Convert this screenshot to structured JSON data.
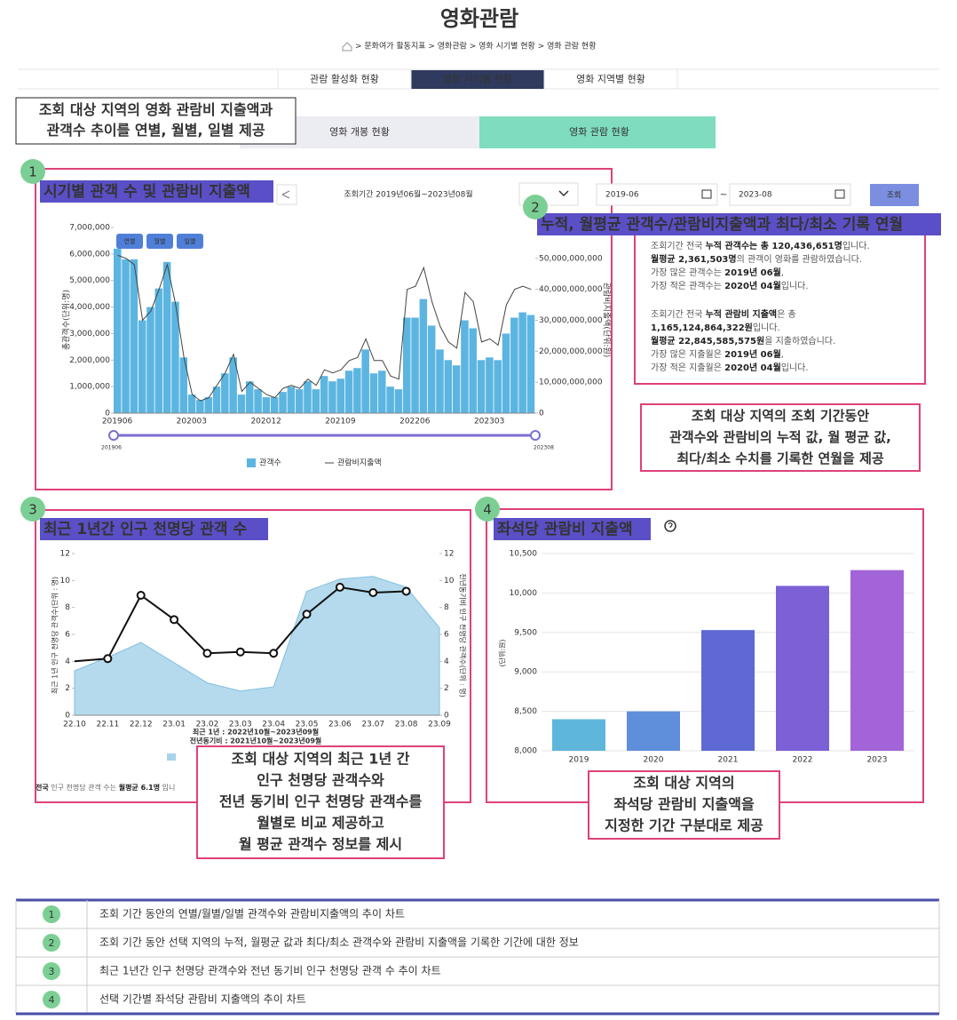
{
  "header": {
    "title": "영화관람",
    "breadcrumb": "> 문화여가 활동지표 > 영화관람 > 영화 시기별 현황 > 영화 관람 현황"
  },
  "tabs": [
    "관람 활성화 현황",
    "영화 시기별 현황",
    "영화 지역별 현황"
  ],
  "subtabs": [
    "영화 개봉 현황",
    "영화 관람 현황"
  ],
  "badges": [
    "1",
    "2",
    "3",
    "4"
  ],
  "controls": {
    "period": "조회기간 2019년06월~2023년08월",
    "date_from": "2019-06",
    "date_to": "2023-08",
    "separator": "~",
    "button": "조회",
    "granularity": [
      "연별",
      "월별",
      "일별"
    ]
  },
  "callouts": [
    {
      "lines": [
        "조회 대상 지역의 영화 관람비 지출액과",
        "관객수 추이를 연별, 월별, 일별 제공"
      ]
    },
    {
      "lines": [
        "조회 대상 지역의 조회 기간동안",
        "관객수와 관람비의 누적 값, 월 평균 값,",
        "최다/최소 수치를 기록한 연월을 제공"
      ]
    },
    {
      "lines": [
        "조회 대상 지역의 최근 1년 간",
        "인구 천명당 관객수와",
        "전년 동기비 인구 천명당 관객수를",
        "월별로 비교 제공하고",
        "월 평균 관객수 정보를 제시"
      ]
    },
    {
      "lines": [
        "조회 대상 지역의",
        "좌석당 관람비 지출액을",
        "지정한 기간 구분대로 제공"
      ]
    }
  ],
  "summary": {
    "title": "누적, 월평균 관객수/관람비지출액과 최다/최소 기록 연월",
    "groups": [
      [
        [
          {
            "text": "조회기간 전국 "
          },
          {
            "text": "누적 관객수는 총 120,436,651명",
            "b": true
          },
          {
            "text": "입니다."
          }
        ],
        [
          {
            "text": "월평균 2,361,503명",
            "b": true
          },
          {
            "text": "의 관객이 영화를 관람하였습니다."
          }
        ],
        [
          {
            "text": "가장 많은 관객수는 "
          },
          {
            "text": "2019년 06월",
            "b": true
          },
          {
            "text": ","
          }
        ],
        [
          {
            "text": "가장 적은 관객수는 "
          },
          {
            "text": "2020년 04월",
            "b": true
          },
          {
            "text": "입니다."
          }
        ]
      ],
      [
        [
          {
            "text": "조회기간 전국 "
          },
          {
            "text": "누적 관람비 지출액",
            "b": true
          },
          {
            "text": "은 총"
          }
        ],
        [
          {
            "text": "1,165,124,864,322원",
            "b": true
          },
          {
            "text": "입니다."
          }
        ],
        [
          {
            "text": "월평균 22,845,585,575원",
            "b": true
          },
          {
            "text": "을 지출하였습니다."
          }
        ],
        [
          {
            "text": "가장 많은 지출월은 "
          },
          {
            "text": "2019년 06월",
            "b": true
          },
          {
            "text": ","
          }
        ],
        [
          {
            "text": "가장 적은 지출월은 "
          },
          {
            "text": "2020년 04월",
            "b": true
          },
          {
            "text": "입니다."
          }
        ]
      ]
    ]
  },
  "chart_data": [
    {
      "type": "combo",
      "title": "시기별 관객 수 및 관람비 지출액",
      "ylabel": "총관객수(단위:명)",
      "y2label": "관람비지출액(단위:원)",
      "categories": [
        "201906",
        null,
        null,
        null,
        null,
        null,
        null,
        null,
        null,
        "202003",
        null,
        null,
        null,
        null,
        null,
        null,
        null,
        null,
        "202012",
        null,
        null,
        null,
        null,
        null,
        null,
        null,
        null,
        "202109",
        null,
        null,
        null,
        null,
        null,
        null,
        null,
        null,
        "202206",
        null,
        null,
        null,
        null,
        null,
        null,
        null,
        null,
        "202303",
        null,
        null,
        null,
        null,
        null
      ],
      "range_labels": [
        "201906",
        "202308"
      ],
      "ylim": [
        0,
        7000000
      ],
      "yticks": [
        0,
        {
          "value": 1000000,
          "label": "1,000,000"
        },
        {
          "value": 2000000,
          "label": "2,000,000"
        },
        {
          "value": 3000000,
          "label": "3,000,000"
        },
        {
          "value": 4000000,
          "label": "4,000,000"
        },
        {
          "value": 5000000,
          "label": "5,000,000"
        },
        {
          "value": 6000000,
          "label": "6,000,000"
        },
        {
          "value": 7000000,
          "label": "7,000,000"
        }
      ],
      "y2lim": [
        0,
        60000000000
      ],
      "y2ticks": [
        0,
        {
          "value": 10000000000,
          "label": "10,000,000,000"
        },
        {
          "value": 20000000000,
          "label": "20,000,000,000"
        },
        {
          "value": 30000000000,
          "label": "30,000,000,000"
        },
        {
          "value": 40000000000,
          "label": "40,000,000,000"
        },
        {
          "value": 50000000000,
          "label": "50,000,000,000"
        }
      ],
      "series": [
        {
          "name": "관객수",
          "type": "bar",
          "color": "#5cb5e0",
          "values": [
            6200000,
            5800000,
            5800000,
            3500000,
            4000000,
            4700000,
            5700000,
            4200000,
            2100000,
            700000,
            500000,
            600000,
            1000000,
            1500000,
            2100000,
            700000,
            1200000,
            900000,
            600000,
            600000,
            800000,
            1000000,
            900000,
            1200000,
            900000,
            1400000,
            1200000,
            1300000,
            1600000,
            1700000,
            2400000,
            1500000,
            1600000,
            1000000,
            900000,
            3600000,
            3600000,
            4300000,
            3300000,
            2400000,
            2000000,
            1800000,
            3500000,
            3200000,
            2000000,
            2100000,
            2000000,
            3000000,
            3600000,
            3800000,
            3700000
          ]
        },
        {
          "name": "관람비지출액",
          "type": "line",
          "axis": "y2",
          "color": "#444444",
          "values": [
            51000000000,
            50000000000,
            48000000000,
            30000000000,
            33000000000,
            40000000000,
            48000000000,
            35000000000,
            18000000000,
            6000000000,
            4000000000,
            5000000000,
            9000000000,
            13000000000,
            19000000000,
            7000000000,
            10000000000,
            8000000000,
            6000000000,
            5000000000,
            8000000000,
            9000000000,
            8000000000,
            11000000000,
            9000000000,
            14000000000,
            13000000000,
            14000000000,
            17000000000,
            18000000000,
            24000000000,
            17000000000,
            17000000000,
            12000000000,
            11000000000,
            40000000000,
            41000000000,
            47000000000,
            36000000000,
            28000000000,
            23000000000,
            21000000000,
            39000000000,
            36000000000,
            23000000000,
            24000000000,
            22000000000,
            35000000000,
            40000000000,
            41000000000,
            40000000000
          ]
        }
      ]
    },
    {
      "type": "combo",
      "title": "최근 1년간 인구 천명당 관객 수",
      "ylabel": "최근 1년 인구 천명당 관객수(단위 : 명)",
      "y2label": "전년동기비 인구 천명당 관객수(단위 : 명)",
      "categories": [
        "22.10",
        "22.11",
        "22.12",
        "23.01",
        "23.02",
        "23.03",
        "23.04",
        "23.05",
        "23.06",
        "23.07",
        "23.08",
        "23.09"
      ],
      "ylim": [
        0,
        12
      ],
      "yticks": [
        0,
        2,
        4,
        6,
        8,
        10,
        12
      ],
      "y2lim": [
        0,
        12
      ],
      "y2ticks": [
        0,
        2,
        4,
        6,
        8,
        10,
        12
      ],
      "series": [
        {
          "name": "전년동기비 : 2021년10월~2023년09월",
          "type": "area",
          "axis": "y2",
          "color": "#a8d3ea",
          "values": [
            3.3,
            4.3,
            5.4,
            3.9,
            2.4,
            1.8,
            2.1,
            9.2,
            10.1,
            10.3,
            9.5,
            6.5
          ]
        },
        {
          "name": "최근 1년 : 2022년10월~2023년09월",
          "type": "line",
          "color": "#111111",
          "values": [
            4.0,
            4.2,
            8.9,
            7.1,
            4.6,
            4.7,
            4.6,
            7.5,
            9.5,
            9.1,
            9.2,
            null
          ]
        }
      ],
      "note": [
        {
          "text": "전국",
          "b": true
        },
        {
          "text": " 인구 천명당 관객 수는 "
        },
        {
          "text": "월평균 6.1명",
          "b": true
        },
        {
          "text": " 입니"
        }
      ]
    },
    {
      "type": "bar",
      "title": "좌석당 관람비 지출액",
      "ylabel": "(단위:원)",
      "grid": true,
      "categories": [
        "2019",
        "2020",
        "2021",
        "2022",
        "2023"
      ],
      "values": [
        8400,
        8500,
        9530,
        10090,
        10290
      ],
      "colors": [
        "#5fb6dc",
        "#5f8edb",
        "#5f69d5",
        "#7c60d6",
        "#a264d8"
      ],
      "ylim": [
        8000,
        10500
      ],
      "yticks": [
        {
          "value": 8000,
          "label": "8,000"
        },
        {
          "value": 8500,
          "label": "8,500"
        },
        {
          "value": 9000,
          "label": "9,000"
        },
        {
          "value": 9500,
          "label": "9,500"
        },
        {
          "value": 10000,
          "label": "10,000"
        },
        {
          "value": 10500,
          "label": "10,500"
        }
      ]
    }
  ],
  "table": {
    "rows": [
      {
        "number": "1",
        "text": "조회 기간 동안의 연별/월별/일별 관객수와 관람비지출액의 추이 차트"
      },
      {
        "number": "2",
        "text": "조회 기간 동안 선택 지역의 누적, 월평균 값과 최다/최소 관객수와 관람비 지출액을 기록한 기간에 대한 정보"
      },
      {
        "number": "3",
        "text": "최근 1년간 인구 천명당 관객수와 전년 동기비 인구 천명당 관객 수 추이 차트"
      },
      {
        "number": "4",
        "text": "선택 기간별 좌석당 관람비 지출액의 추이 차트"
      }
    ]
  }
}
